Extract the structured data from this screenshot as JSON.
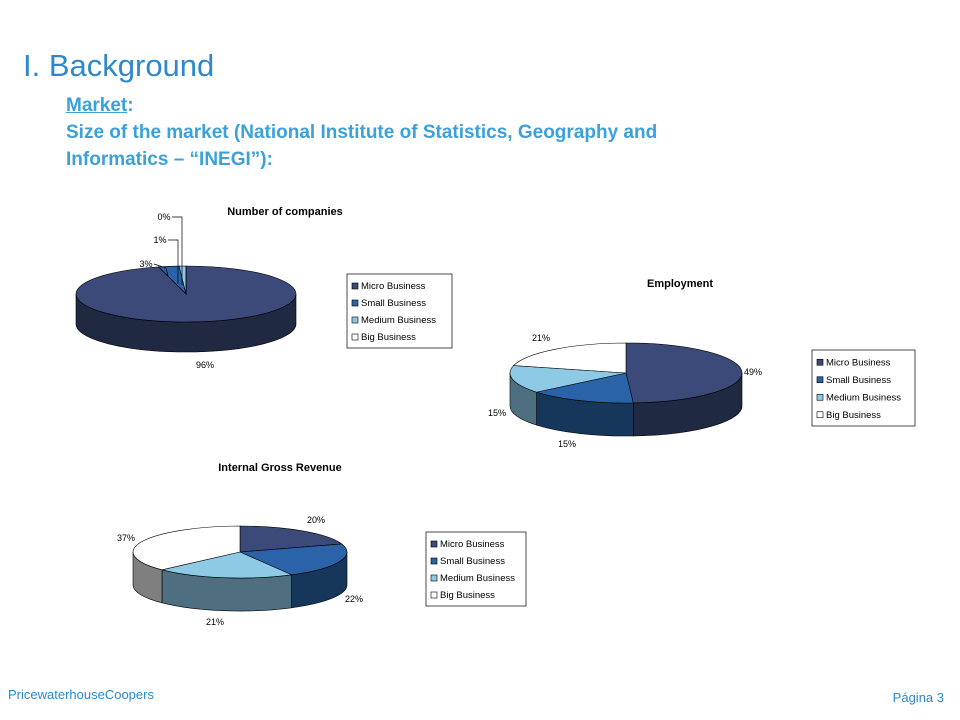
{
  "slide": {
    "title": "I. Background",
    "subtitle_head": "Market",
    "subtitle_colon": ":",
    "subtitle_line2": "Size of the market (National Institute of Statistics, Geography and",
    "subtitle_line3": "Informatics – “INEGI”):",
    "footer_left": "PricewaterhouseCoopers",
    "footer_right": "Página 3"
  },
  "colors": {
    "Micro Business": "#3b4a78",
    "Small Business": "#2a63a8",
    "Medium Business": "#8ecae6",
    "Big Business": "#ffffff"
  },
  "chart_data": [
    {
      "type": "pie",
      "title": "Number of companies",
      "categories": [
        "Micro Business",
        "Small Business",
        "Medium Business",
        "Big Business"
      ],
      "values": [
        96,
        3,
        1,
        0
      ],
      "labels": [
        "96%",
        "3%",
        "1%",
        "0%"
      ],
      "legend": "right"
    },
    {
      "type": "pie",
      "title": "Employment",
      "categories": [
        "Micro Business",
        "Small Business",
        "Medium Business",
        "Big Business"
      ],
      "values": [
        49,
        15,
        15,
        21
      ],
      "labels": [
        "49%",
        "15%",
        "15%",
        "21%"
      ],
      "legend": "right"
    },
    {
      "type": "pie",
      "title": "Internal Gross Revenue",
      "categories": [
        "Micro Business",
        "Small Business",
        "Medium Business",
        "Big Business"
      ],
      "values": [
        20,
        22,
        21,
        37
      ],
      "labels": [
        "20%",
        "22%",
        "21%",
        "37%"
      ],
      "legend": "right"
    }
  ]
}
